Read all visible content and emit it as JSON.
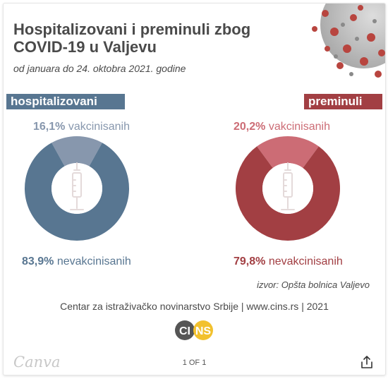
{
  "header": {
    "title": "Hospitalizovani i preminuli zbog COVID-19 u Valjevu",
    "subtitle": "od januara do 24. oktobra 2021. godine"
  },
  "chart_data": [
    {
      "type": "pie",
      "title": "hospitalizovani",
      "categories": [
        "vakcinisanih",
        "nevakcinisanih"
      ],
      "values": [
        16.1,
        83.9
      ],
      "labels": {
        "vaccinated_value": "16,1%",
        "vaccinated_text": "vakcinisanih",
        "unvaccinated_value": "83,9%",
        "unvaccinated_text": "nevakcinisanih"
      },
      "colors": {
        "vaccinated": "#8797ad",
        "unvaccinated": "#587691",
        "tag": "#587691",
        "label_vacc": "#8797ad",
        "label_unvacc": "#587691"
      }
    },
    {
      "type": "pie",
      "title": "preminuli",
      "categories": [
        "vakcinisanih",
        "nevakcinisanih"
      ],
      "values": [
        20.2,
        79.8
      ],
      "labels": {
        "vaccinated_value": "20,2%",
        "vaccinated_text": "vakcinisanih",
        "unvaccinated_value": "79,8%",
        "unvaccinated_text": "nevakcinisanih"
      },
      "colors": {
        "vaccinated": "#cc6c75",
        "unvaccinated": "#a23f43",
        "tag": "#a23f43",
        "label_vacc": "#cc6c75",
        "label_unvacc": "#a23f43"
      }
    }
  ],
  "source": "izvor: Opšta bolnica Valjevo",
  "credit": "Centar za istraživačko novinarstvo Srbije | www.cins.rs | 2021",
  "logo": {
    "text": "CINS",
    "left_letters": "CI",
    "right_letters": "NS",
    "colors": {
      "dark": "#555555",
      "yellow": "#f2c12e"
    }
  },
  "footer": {
    "brand": "Canva",
    "pager": "1 OF 1"
  },
  "icons": {
    "share": "share-icon",
    "virus": "virus-illustration",
    "syringe": "syringe-icon"
  }
}
